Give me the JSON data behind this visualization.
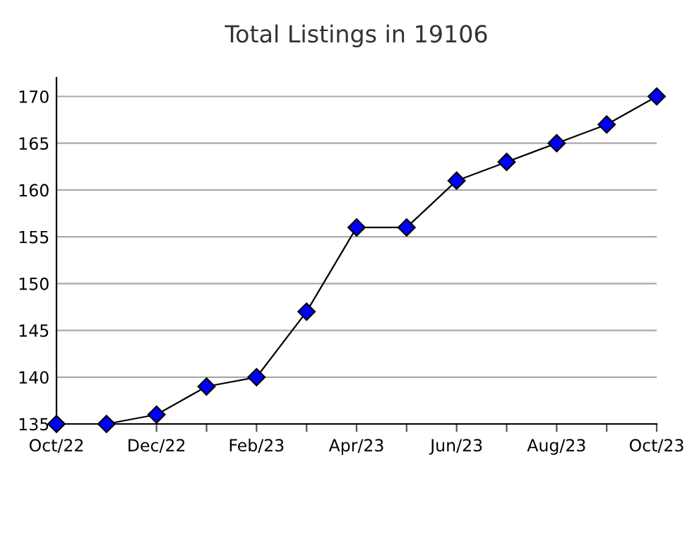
{
  "chart_data": {
    "type": "line",
    "title": "Total Listings in 19106",
    "categories": [
      "Oct/22",
      null,
      "Dec/22",
      null,
      "Feb/23",
      null,
      "Apr/23",
      null,
      "Jun/23",
      null,
      "Aug/23",
      null,
      "Oct/23"
    ],
    "series": [
      {
        "color": "#0000ff",
        "values": [
          135,
          135,
          136,
          139,
          140,
          147,
          156,
          156,
          161,
          163,
          165,
          167,
          170
        ]
      }
    ],
    "ylim": [
      135,
      172
    ],
    "yticks": [
      135,
      140,
      145,
      150,
      155,
      160,
      165,
      170
    ],
    "grid": "y",
    "marker": "diamond",
    "line_style": "solid",
    "legend": false
  }
}
